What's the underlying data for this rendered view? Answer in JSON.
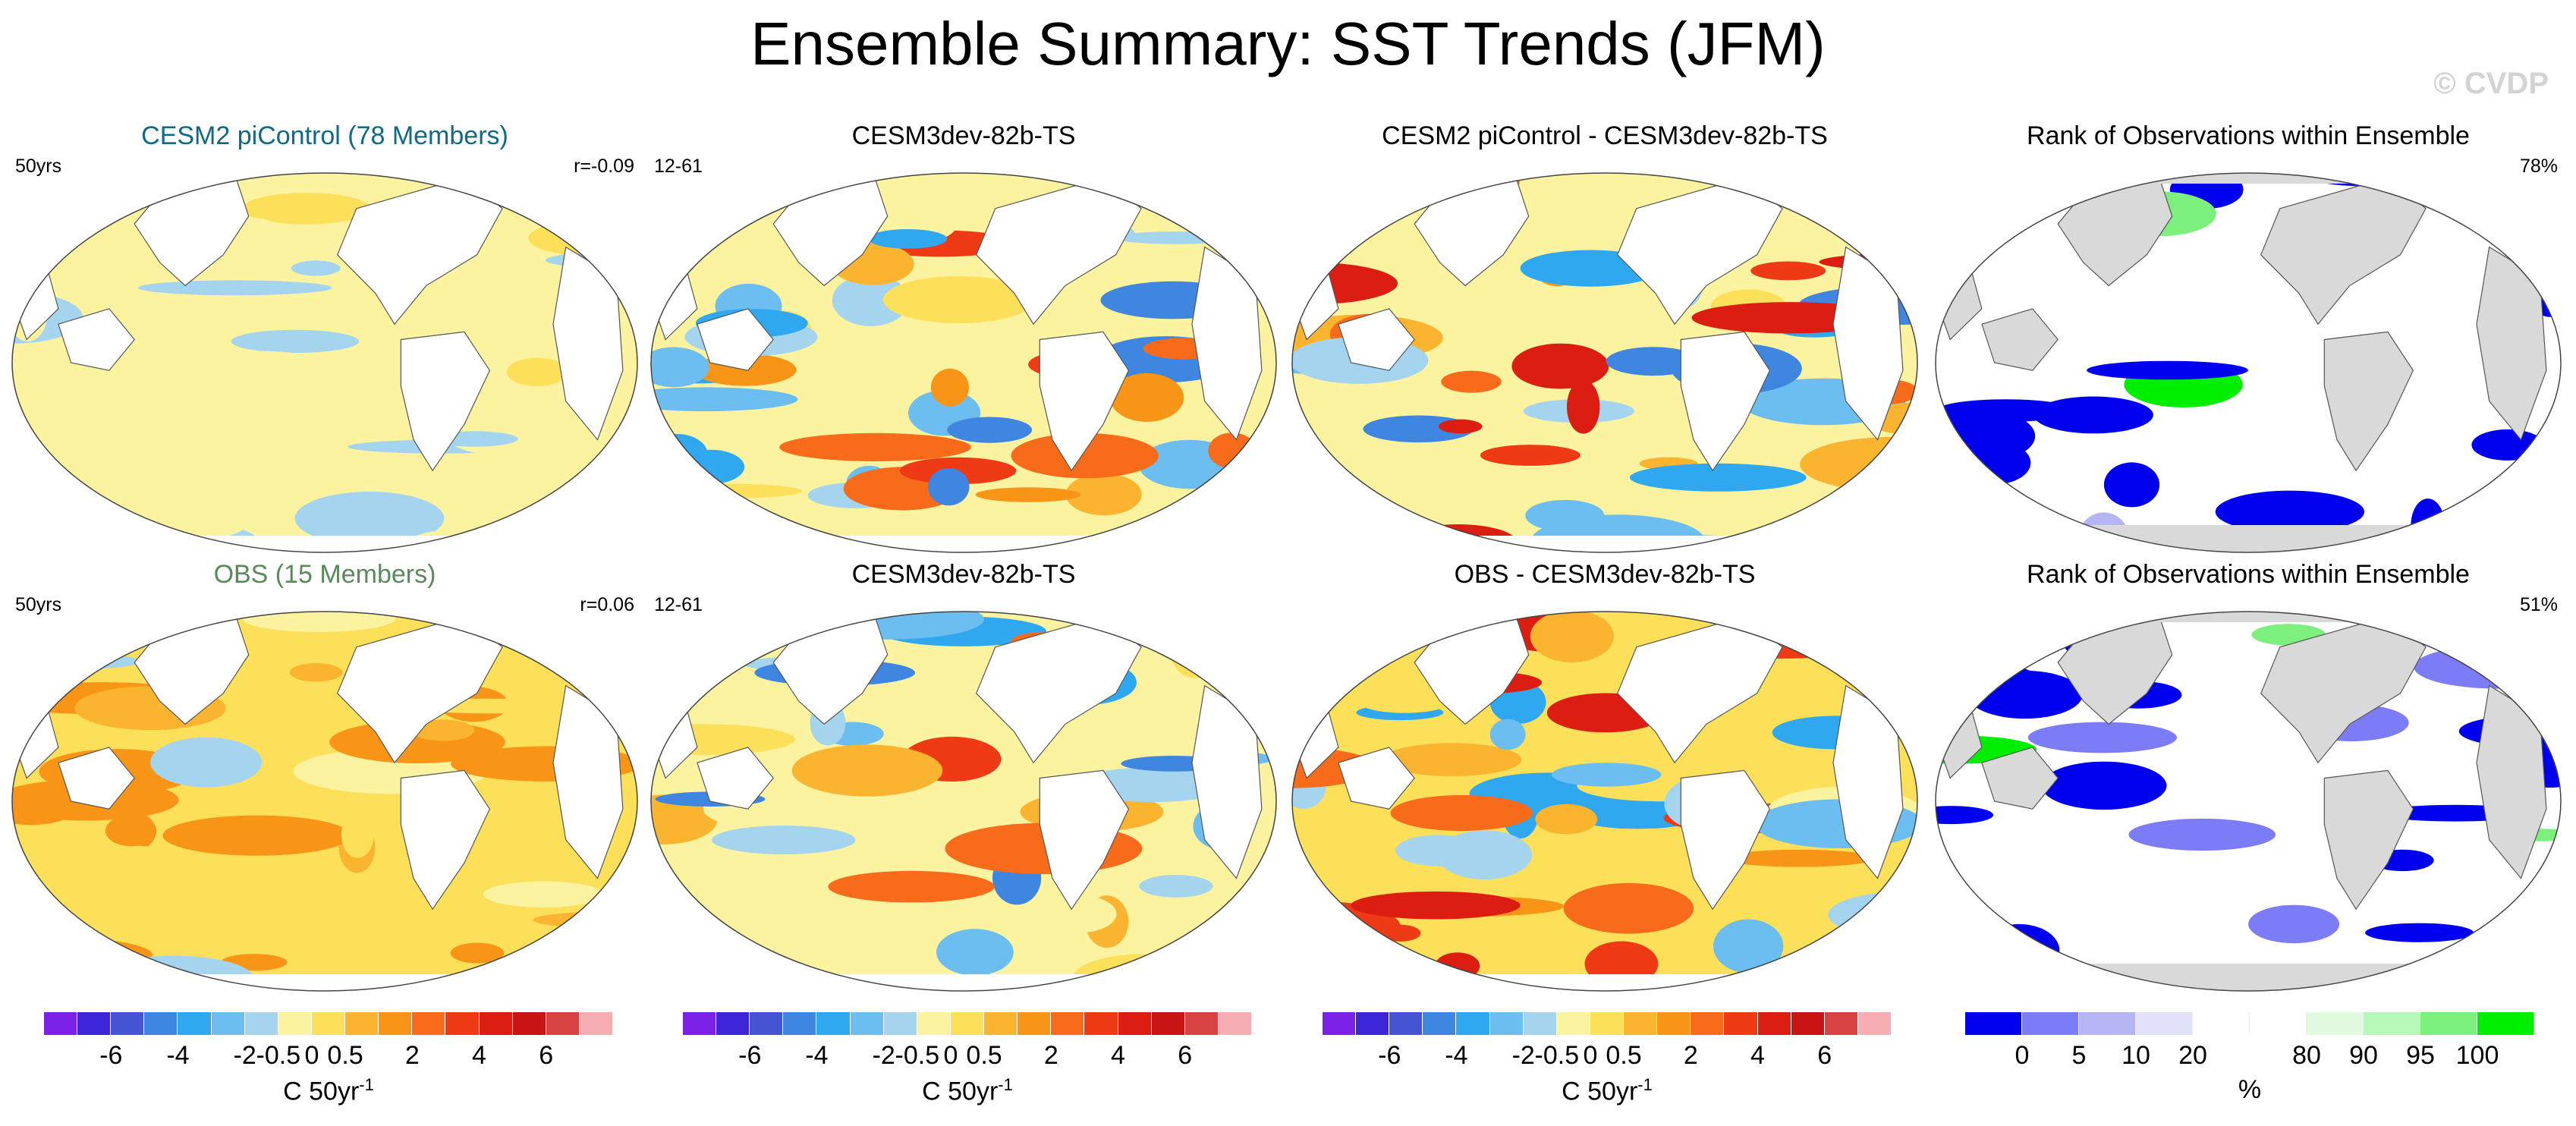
{
  "title": "Ensemble Summary: SST Trends (JFM)",
  "watermark": "© CVDP",
  "colors": {
    "diverging": [
      "#7b20e6",
      "#3c26d8",
      "#4554d3",
      "#3f86e0",
      "#2fa8f0",
      "#6cbdf0",
      "#a5d5ee",
      "#fbf3a0",
      "#fde05a",
      "#fbb42f",
      "#f89517",
      "#f86b1a",
      "#ef3a16",
      "#dc1d12",
      "#c81414",
      "#d84242",
      "#f6adb4"
    ],
    "rank": [
      "#0000ee",
      "#7c7cf6",
      "#b5b5f3",
      "#e2e2fa",
      "#ffffff",
      "#ffffff",
      "#e0fbe0",
      "#b7f7b7",
      "#7cf07c",
      "#00ef00"
    ],
    "land": "#d9d9d9"
  },
  "panels": [
    {
      "title": "CESM2 piControl (78 Members)",
      "left": "50yrs",
      "right": "r=-0.09",
      "title_color": "#116987"
    },
    {
      "title": "CESM3dev-82b-TS",
      "left": "12-61",
      "right": ""
    },
    {
      "title": "CESM2 piControl - CESM3dev-82b-TS",
      "left": "",
      "right": ""
    },
    {
      "title": "Rank of Observations within Ensemble",
      "left": "",
      "right": "78%"
    },
    {
      "title": "OBS (15 Members)",
      "left": "50yrs",
      "right": "r=0.06",
      "title_color": "#5a8a5a"
    },
    {
      "title": "CESM3dev-82b-TS",
      "left": "12-61",
      "right": ""
    },
    {
      "title": "OBS - CESM3dev-82b-TS",
      "left": "",
      "right": ""
    },
    {
      "title": "Rank of Observations within Ensemble",
      "left": "",
      "right": "51%"
    }
  ],
  "colorbars": {
    "trend": {
      "tick_labels": [
        "-6",
        "-4",
        "-2",
        "-0.5",
        "0",
        "0.5",
        "2",
        "4",
        "6"
      ],
      "unit": "C 50yr",
      "unit_sup": "-1"
    },
    "rank": {
      "tick_labels": [
        "0",
        "5",
        "10",
        "20",
        "80",
        "90",
        "95",
        "100"
      ],
      "unit": "%"
    }
  },
  "chart_data": [
    {
      "type": "heatmap",
      "title": "CESM2 piControl (78 Members)",
      "subtitle_left": "50yrs",
      "subtitle_right": "r=-0.09",
      "variable": "SST trend (JFM)",
      "units": "C 50yr-1",
      "levels": [
        -6,
        -5,
        -4,
        -3,
        -2,
        -1,
        -0.5,
        0,
        0.5,
        1,
        2,
        3,
        4,
        5,
        6
      ],
      "dominant_range": [
        -0.5,
        0.5
      ]
    },
    {
      "type": "heatmap",
      "title": "CESM3dev-82b-TS",
      "subtitle_left": "12-61",
      "variable": "SST trend (JFM)",
      "units": "C 50yr-1",
      "levels": [
        -6,
        -5,
        -4,
        -3,
        -2,
        -1,
        -0.5,
        0,
        0.5,
        1,
        2,
        3,
        4,
        5,
        6
      ],
      "dominant_range": [
        -2,
        2
      ]
    },
    {
      "type": "heatmap",
      "title": "CESM2 piControl - CESM3dev-82b-TS",
      "variable": "SST trend difference (JFM)",
      "units": "C 50yr-1",
      "levels": [
        -6,
        -5,
        -4,
        -3,
        -2,
        -1,
        -0.5,
        0,
        0.5,
        1,
        2,
        3,
        4,
        5,
        6
      ],
      "dominant_range": [
        -2,
        4
      ]
    },
    {
      "type": "heatmap",
      "title": "Rank of Observations within Ensemble",
      "subtitle_right": "78%",
      "units": "%",
      "levels": [
        0,
        5,
        10,
        20,
        80,
        90,
        95,
        100
      ]
    },
    {
      "type": "heatmap",
      "title": "OBS (15 Members)",
      "subtitle_left": "50yrs",
      "subtitle_right": "r=0.06",
      "variable": "SST trend (JFM)",
      "units": "C 50yr-1",
      "levels": [
        -6,
        -5,
        -4,
        -3,
        -2,
        -1,
        -0.5,
        0,
        0.5,
        1,
        2,
        3,
        4,
        5,
        6
      ],
      "dominant_range": [
        0.5,
        2
      ]
    },
    {
      "type": "heatmap",
      "title": "CESM3dev-82b-TS",
      "subtitle_left": "12-61",
      "variable": "SST trend (JFM)",
      "units": "C 50yr-1",
      "levels": [
        -6,
        -5,
        -4,
        -3,
        -2,
        -1,
        -0.5,
        0,
        0.5,
        1,
        2,
        3,
        4,
        5,
        6
      ],
      "dominant_range": [
        -2,
        2
      ]
    },
    {
      "type": "heatmap",
      "title": "OBS - CESM3dev-82b-TS",
      "variable": "SST trend difference (JFM)",
      "units": "C 50yr-1",
      "levels": [
        -6,
        -5,
        -4,
        -3,
        -2,
        -1,
        -0.5,
        0,
        0.5,
        1,
        2,
        3,
        4,
        5,
        6
      ],
      "dominant_range": [
        -2,
        4
      ]
    },
    {
      "type": "heatmap",
      "title": "Rank of Observations within Ensemble",
      "subtitle_right": "51%",
      "units": "%",
      "levels": [
        0,
        5,
        10,
        20,
        80,
        90,
        95,
        100
      ]
    }
  ]
}
